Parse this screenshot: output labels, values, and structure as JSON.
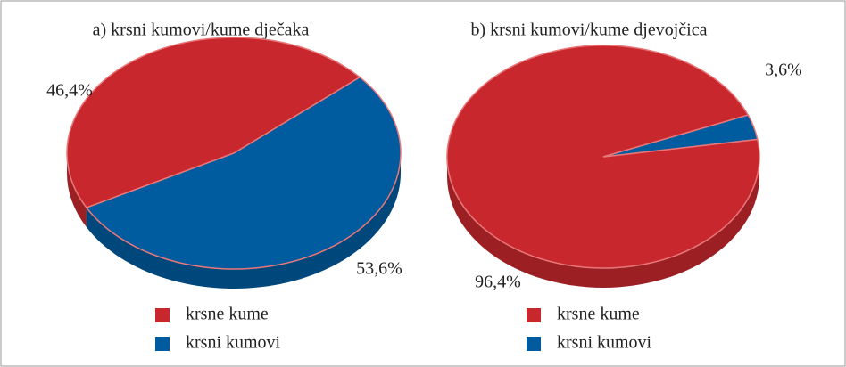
{
  "chart_data": [
    {
      "type": "pie",
      "title": "a) krsni kumovi/kume dječaka",
      "categories": [
        "krsne kume",
        "krsni kumovi"
      ],
      "values": [
        46.4,
        53.6
      ],
      "value_labels": [
        "46,4%",
        "53,6%"
      ],
      "colors": [
        "#c8282d",
        "#005b9f"
      ]
    },
    {
      "type": "pie",
      "title": "b) krsni kumovi/kume djevojčica",
      "categories": [
        "krsne kume",
        "krsni kumovi"
      ],
      "values": [
        96.4,
        3.6
      ],
      "value_labels": [
        "96,4%",
        "3,6%"
      ],
      "colors": [
        "#c8282d",
        "#005b9f"
      ]
    }
  ]
}
